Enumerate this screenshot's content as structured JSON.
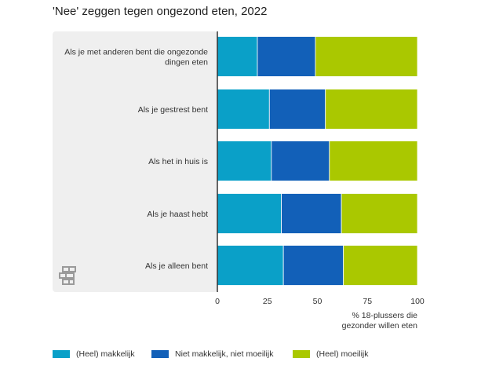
{
  "title": "'Nee' zeggen tegen ongezond eten, 2022",
  "logo": {
    "name": "cbs-logo-icon"
  },
  "colors": {
    "makkelijk": "#0aa0c8",
    "neutraal": "#1260b8",
    "moeilijk": "#aac800",
    "panel": "#efefef",
    "axis": "#333333"
  },
  "chart_data": {
    "type": "bar",
    "orientation": "horizontal",
    "stacked": true,
    "title": "'Nee' zeggen tegen ongezond eten, 2022",
    "categories": [
      [
        "Als je met anderen bent die ongezonde",
        "dingen eten"
      ],
      [
        "Als je gestrest bent"
      ],
      [
        "Als het in huis is"
      ],
      [
        "Als je haast hebt"
      ],
      [
        "Als je alleen bent"
      ]
    ],
    "series": [
      {
        "name": "(Heel) makkelijk",
        "color": "#0aa0c8",
        "values": [
          20,
          26,
          27,
          32,
          33
        ]
      },
      {
        "name": "Niet makkelijk, niet moeilijk",
        "color": "#1260b8",
        "values": [
          29,
          28,
          29,
          30,
          30
        ]
      },
      {
        "name": "(Heel) moeilijk",
        "color": "#aac800",
        "values": [
          51,
          46,
          44,
          38,
          37
        ]
      }
    ],
    "xlim": [
      0,
      100
    ],
    "xticks": [
      0,
      25,
      50,
      75,
      100
    ],
    "xlabel": [
      "% 18-plussers die",
      "gezonder willen eten"
    ],
    "ylabel": "",
    "grid": false,
    "legend_position": "bottom"
  }
}
